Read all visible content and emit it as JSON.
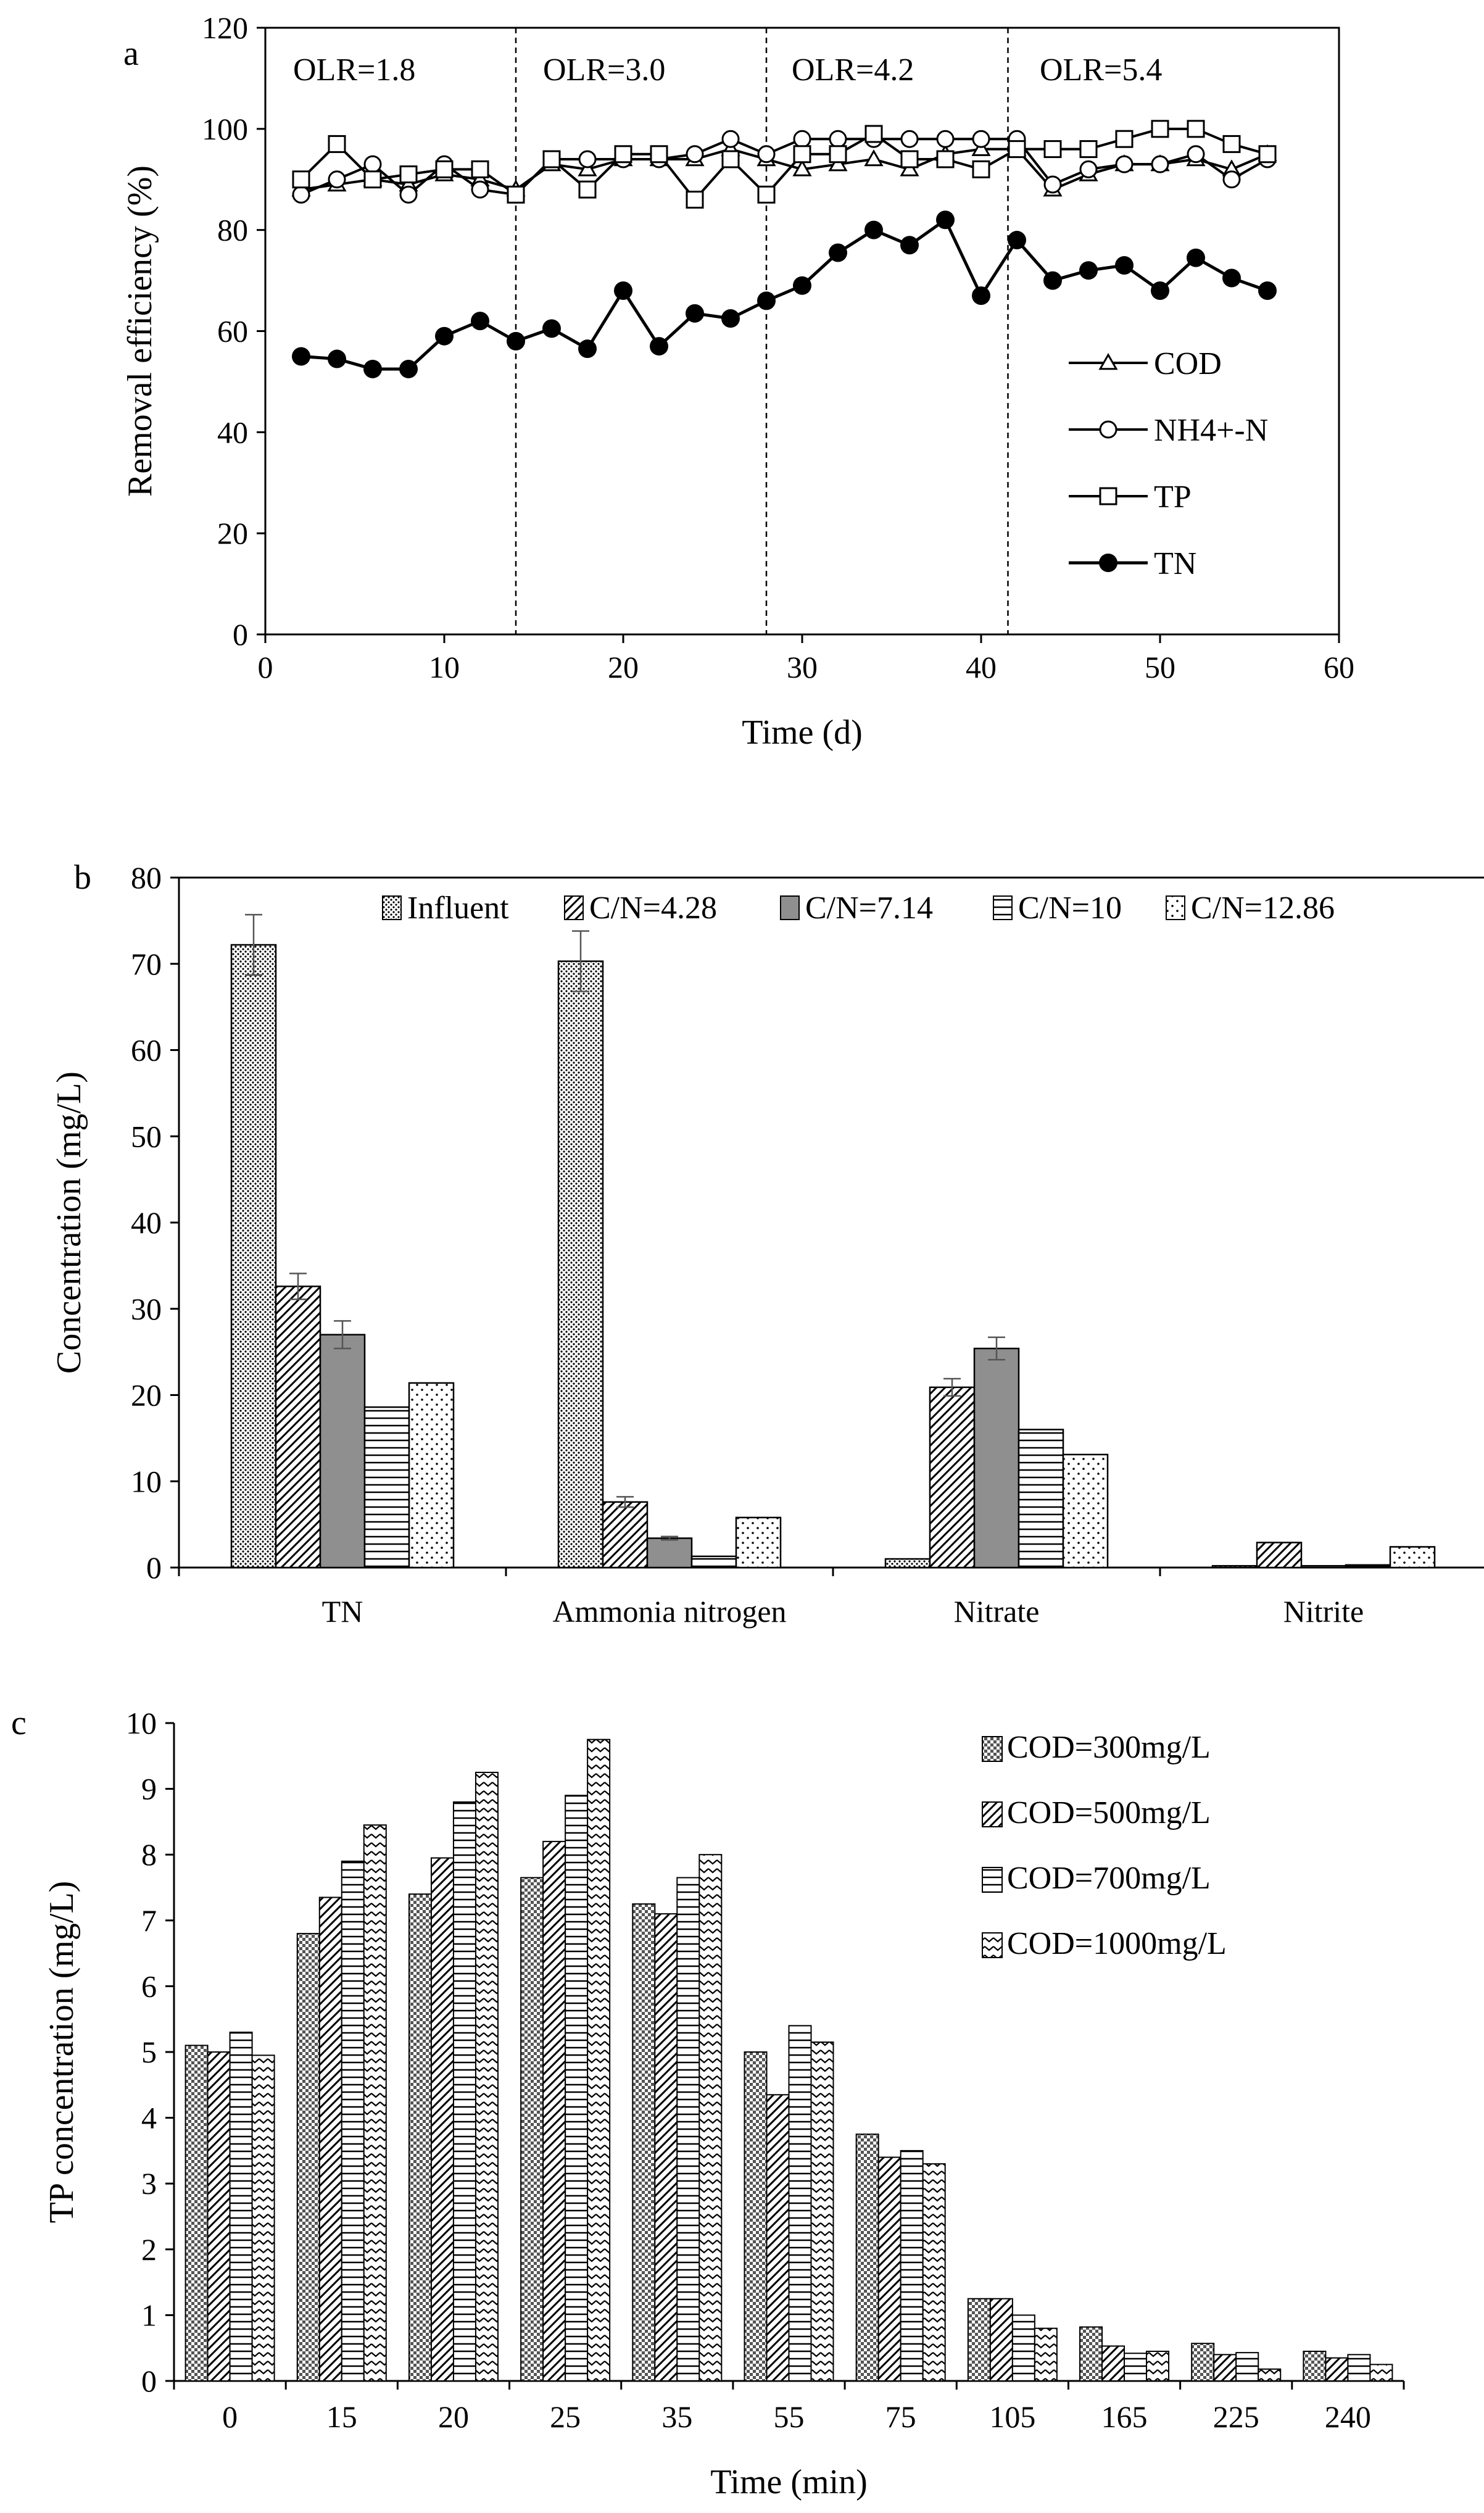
{
  "chart_data": [
    {
      "panel": "a",
      "type": "line",
      "xlabel": "Time (d)",
      "ylabel": "Removal efficiency (%)",
      "xlim": [
        0,
        60
      ],
      "ylim": [
        0,
        120
      ],
      "xticks": [
        0,
        10,
        20,
        30,
        40,
        50,
        60
      ],
      "yticks": [
        0,
        20,
        40,
        60,
        80,
        100,
        120
      ],
      "phase_labels": [
        "OLR=1.8",
        "OLR=3.0",
        "OLR=4.2",
        "OLR=5.4"
      ],
      "phase_boundaries": [
        14,
        28,
        41.5
      ],
      "x": [
        2,
        4,
        6,
        8,
        10,
        12,
        14,
        16,
        18,
        20,
        22,
        24,
        26,
        28,
        30,
        32,
        34,
        36,
        38,
        40,
        42,
        44,
        46,
        48,
        50,
        52,
        54,
        56
      ],
      "series": [
        {
          "name": "COD",
          "marker": "triangle-open",
          "values": [
            88,
            89,
            90,
            89,
            91,
            90,
            88,
            93,
            92,
            94,
            94,
            94,
            96,
            94,
            92,
            93,
            94,
            92,
            95,
            96,
            96,
            88,
            91,
            93,
            93,
            94,
            92,
            95
          ]
        },
        {
          "name": "NH4+-N",
          "marker": "circle-open",
          "values": [
            87,
            90,
            93,
            87,
            93,
            88,
            87,
            94,
            94,
            94,
            94,
            95,
            98,
            95,
            98,
            98,
            98,
            98,
            98,
            98,
            98,
            89,
            92,
            93,
            93,
            95,
            90,
            94
          ]
        },
        {
          "name": "TP",
          "marker": "square-open",
          "values": [
            90,
            97,
            90,
            91,
            92,
            92,
            87,
            94,
            88,
            95,
            95,
            86,
            94,
            87,
            95,
            95,
            99,
            94,
            94,
            92,
            96,
            96,
            96,
            98,
            100,
            100,
            97,
            95
          ]
        },
        {
          "name": "TN",
          "marker": "circle-filled",
          "values": [
            55,
            54.5,
            52.5,
            52.5,
            59,
            62,
            58,
            60.5,
            56.5,
            68,
            57,
            63.5,
            62.5,
            66,
            69,
            75.5,
            80,
            77,
            82,
            67,
            78,
            70,
            72,
            73,
            68,
            74.5,
            70.5,
            68
          ]
        }
      ]
    },
    {
      "panel": "b",
      "type": "bar",
      "xlabel": "",
      "ylabel": "Concentration (mg/L)",
      "ylim": [
        0,
        80
      ],
      "yticks": [
        0,
        10,
        20,
        30,
        40,
        50,
        60,
        70,
        80
      ],
      "categories": [
        "TN",
        "Ammonia nitrogen",
        "Nitrate",
        "Nitrite"
      ],
      "series": [
        {
          "name": "Influent",
          "pattern": "dots-dense",
          "values": [
            72.2,
            70.3,
            1.0,
            0.2
          ],
          "errors": [
            3.5,
            3.5,
            0,
            0
          ]
        },
        {
          "name": "C/N=4.28",
          "pattern": "diagonal",
          "values": [
            32.6,
            7.6,
            20.9,
            2.9
          ],
          "errors": [
            1.5,
            0.6,
            1.0,
            0
          ]
        },
        {
          "name": "C/N=7.14",
          "pattern": "gray",
          "values": [
            27.0,
            3.4,
            25.4,
            0.2
          ],
          "errors": [
            1.6,
            0.2,
            1.3,
            0
          ]
        },
        {
          "name": "C/N=10",
          "pattern": "horizontal",
          "values": [
            18.6,
            1.3,
            16.0,
            0.3
          ],
          "errors": [
            0,
            0,
            0,
            0
          ]
        },
        {
          "name": "C/N=12.86",
          "pattern": "dots-sparse",
          "values": [
            21.4,
            5.8,
            13.1,
            2.4
          ],
          "errors": [
            0,
            0,
            0,
            0
          ]
        }
      ]
    },
    {
      "panel": "c",
      "type": "bar",
      "xlabel": "Time (min)",
      "ylabel": "TP concentration (mg/L)",
      "ylim": [
        0,
        10
      ],
      "yticks": [
        0,
        1,
        2,
        3,
        4,
        5,
        6,
        7,
        8,
        9,
        10
      ],
      "categories": [
        "0",
        "15",
        "20",
        "25",
        "35",
        "55",
        "75",
        "105",
        "165",
        "225",
        "240"
      ],
      "series": [
        {
          "name": "COD=300mg/L",
          "pattern": "checker",
          "values": [
            5.1,
            6.8,
            7.4,
            7.65,
            7.25,
            5.0,
            3.75,
            1.25,
            0.82,
            0.57,
            0.45
          ]
        },
        {
          "name": "COD=500mg/L",
          "pattern": "diagonal",
          "values": [
            5.0,
            7.35,
            7.95,
            8.2,
            7.1,
            4.35,
            3.4,
            1.25,
            0.53,
            0.4,
            0.35
          ]
        },
        {
          "name": "COD=700mg/L",
          "pattern": "horizontal",
          "values": [
            5.3,
            7.9,
            8.8,
            8.9,
            7.65,
            5.4,
            3.5,
            1.0,
            0.42,
            0.43,
            0.4
          ]
        },
        {
          "name": "COD=1000mg/L",
          "pattern": "zigzag",
          "values": [
            4.95,
            8.45,
            9.25,
            9.75,
            8.0,
            5.15,
            3.3,
            0.8,
            0.45,
            0.18,
            0.25
          ]
        }
      ]
    }
  ]
}
